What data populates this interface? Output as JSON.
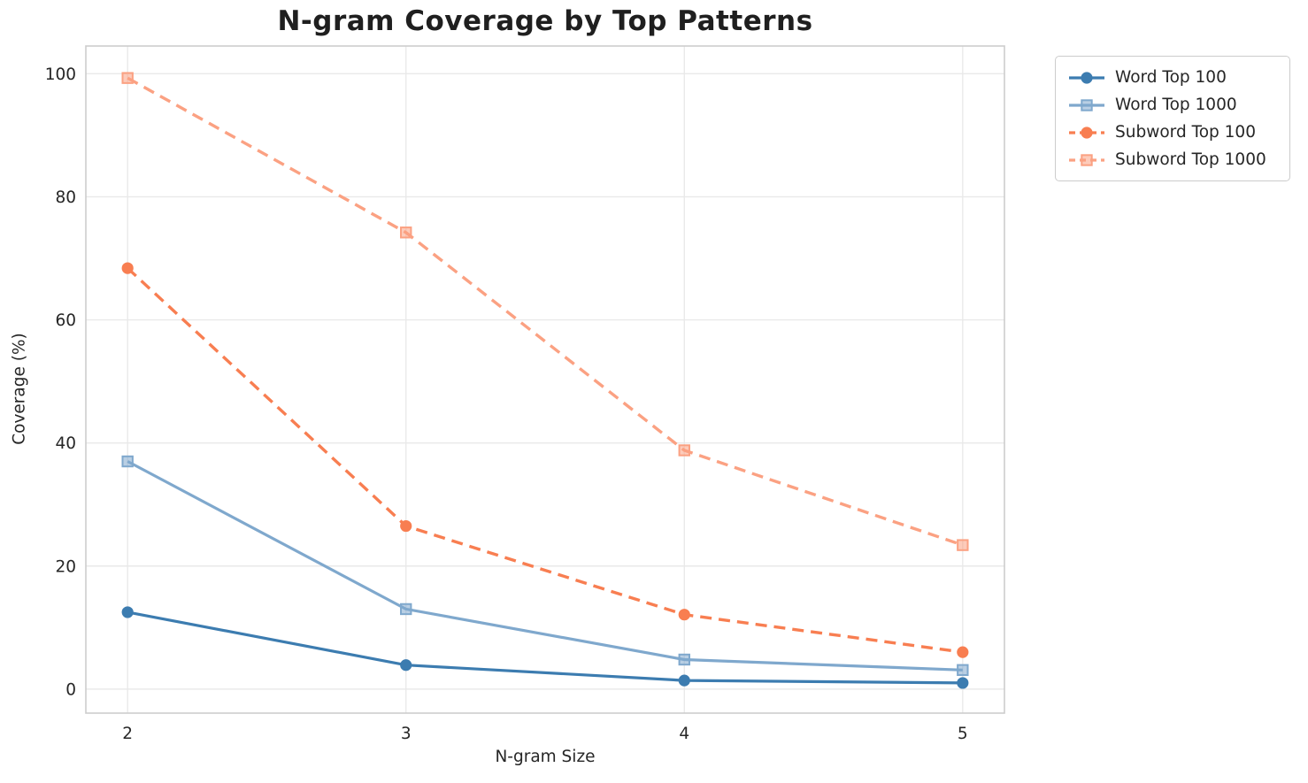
{
  "chart_data": {
    "type": "line",
    "title": "N-gram Coverage by Top Patterns",
    "xlabel": "N-gram Size",
    "ylabel": "Coverage (%)",
    "x": [
      2,
      3,
      4,
      5
    ],
    "xticks": [
      "2",
      "3",
      "4",
      "5"
    ],
    "yticks": [
      "0",
      "20",
      "40",
      "60",
      "80",
      "100"
    ],
    "ytick_values": [
      0,
      20,
      40,
      60,
      80,
      100
    ],
    "xlim": [
      1.85,
      5.15
    ],
    "ylim": [
      -3.9,
      104.5
    ],
    "grid": "on",
    "legend_position": "outside upper right",
    "series": [
      {
        "name": "Word Top 100",
        "color": "#3c7cb0",
        "line_style": "solid",
        "marker": "circle",
        "values": [
          12.5,
          3.9,
          1.4,
          1.0
        ]
      },
      {
        "name": "Word Top 1000",
        "color": "#7fa8cd",
        "line_style": "solid",
        "marker": "square",
        "values": [
          37.0,
          13.0,
          4.8,
          3.1
        ]
      },
      {
        "name": "Subword Top 100",
        "color": "#f87e51",
        "line_style": "dashed",
        "marker": "circle",
        "values": [
          68.4,
          26.5,
          12.1,
          6.0
        ]
      },
      {
        "name": "Subword Top 1000",
        "color": "#fba182",
        "line_style": "dashed",
        "marker": "square",
        "values": [
          99.3,
          74.2,
          38.8,
          23.4
        ]
      }
    ]
  }
}
